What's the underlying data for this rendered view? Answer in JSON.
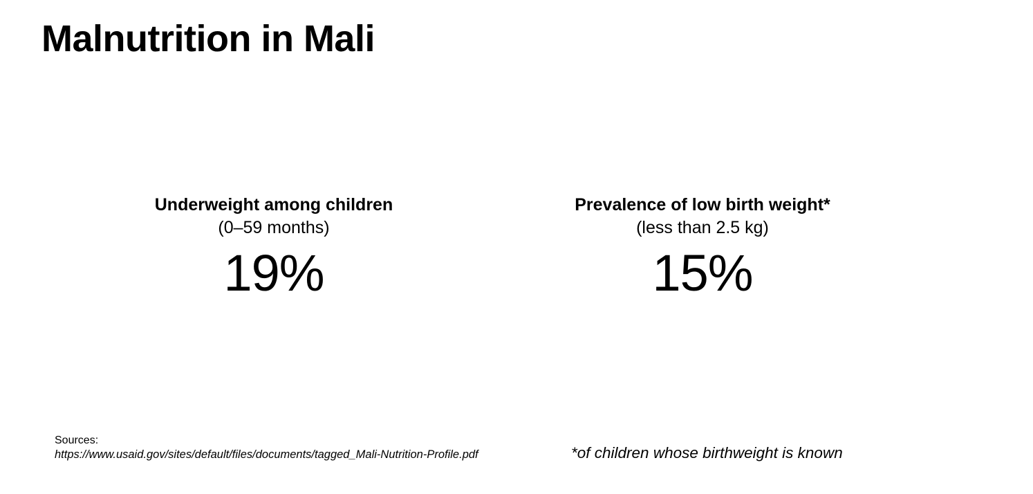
{
  "title": "Malnutrition in Mali",
  "stats": [
    {
      "heading": "Underweight among children",
      "subheading": "(0–59 months)",
      "value": "19%"
    },
    {
      "heading": "Prevalence of low birth weight*",
      "subheading": "(less than 2.5 kg)",
      "value": "15%"
    }
  ],
  "sources": {
    "label": "Sources:",
    "url": "https://www.usaid.gov/sites/default/files/documents/tagged_Mali-Nutrition-Profile.pdf"
  },
  "footnote": "*of children whose birthweight is known"
}
